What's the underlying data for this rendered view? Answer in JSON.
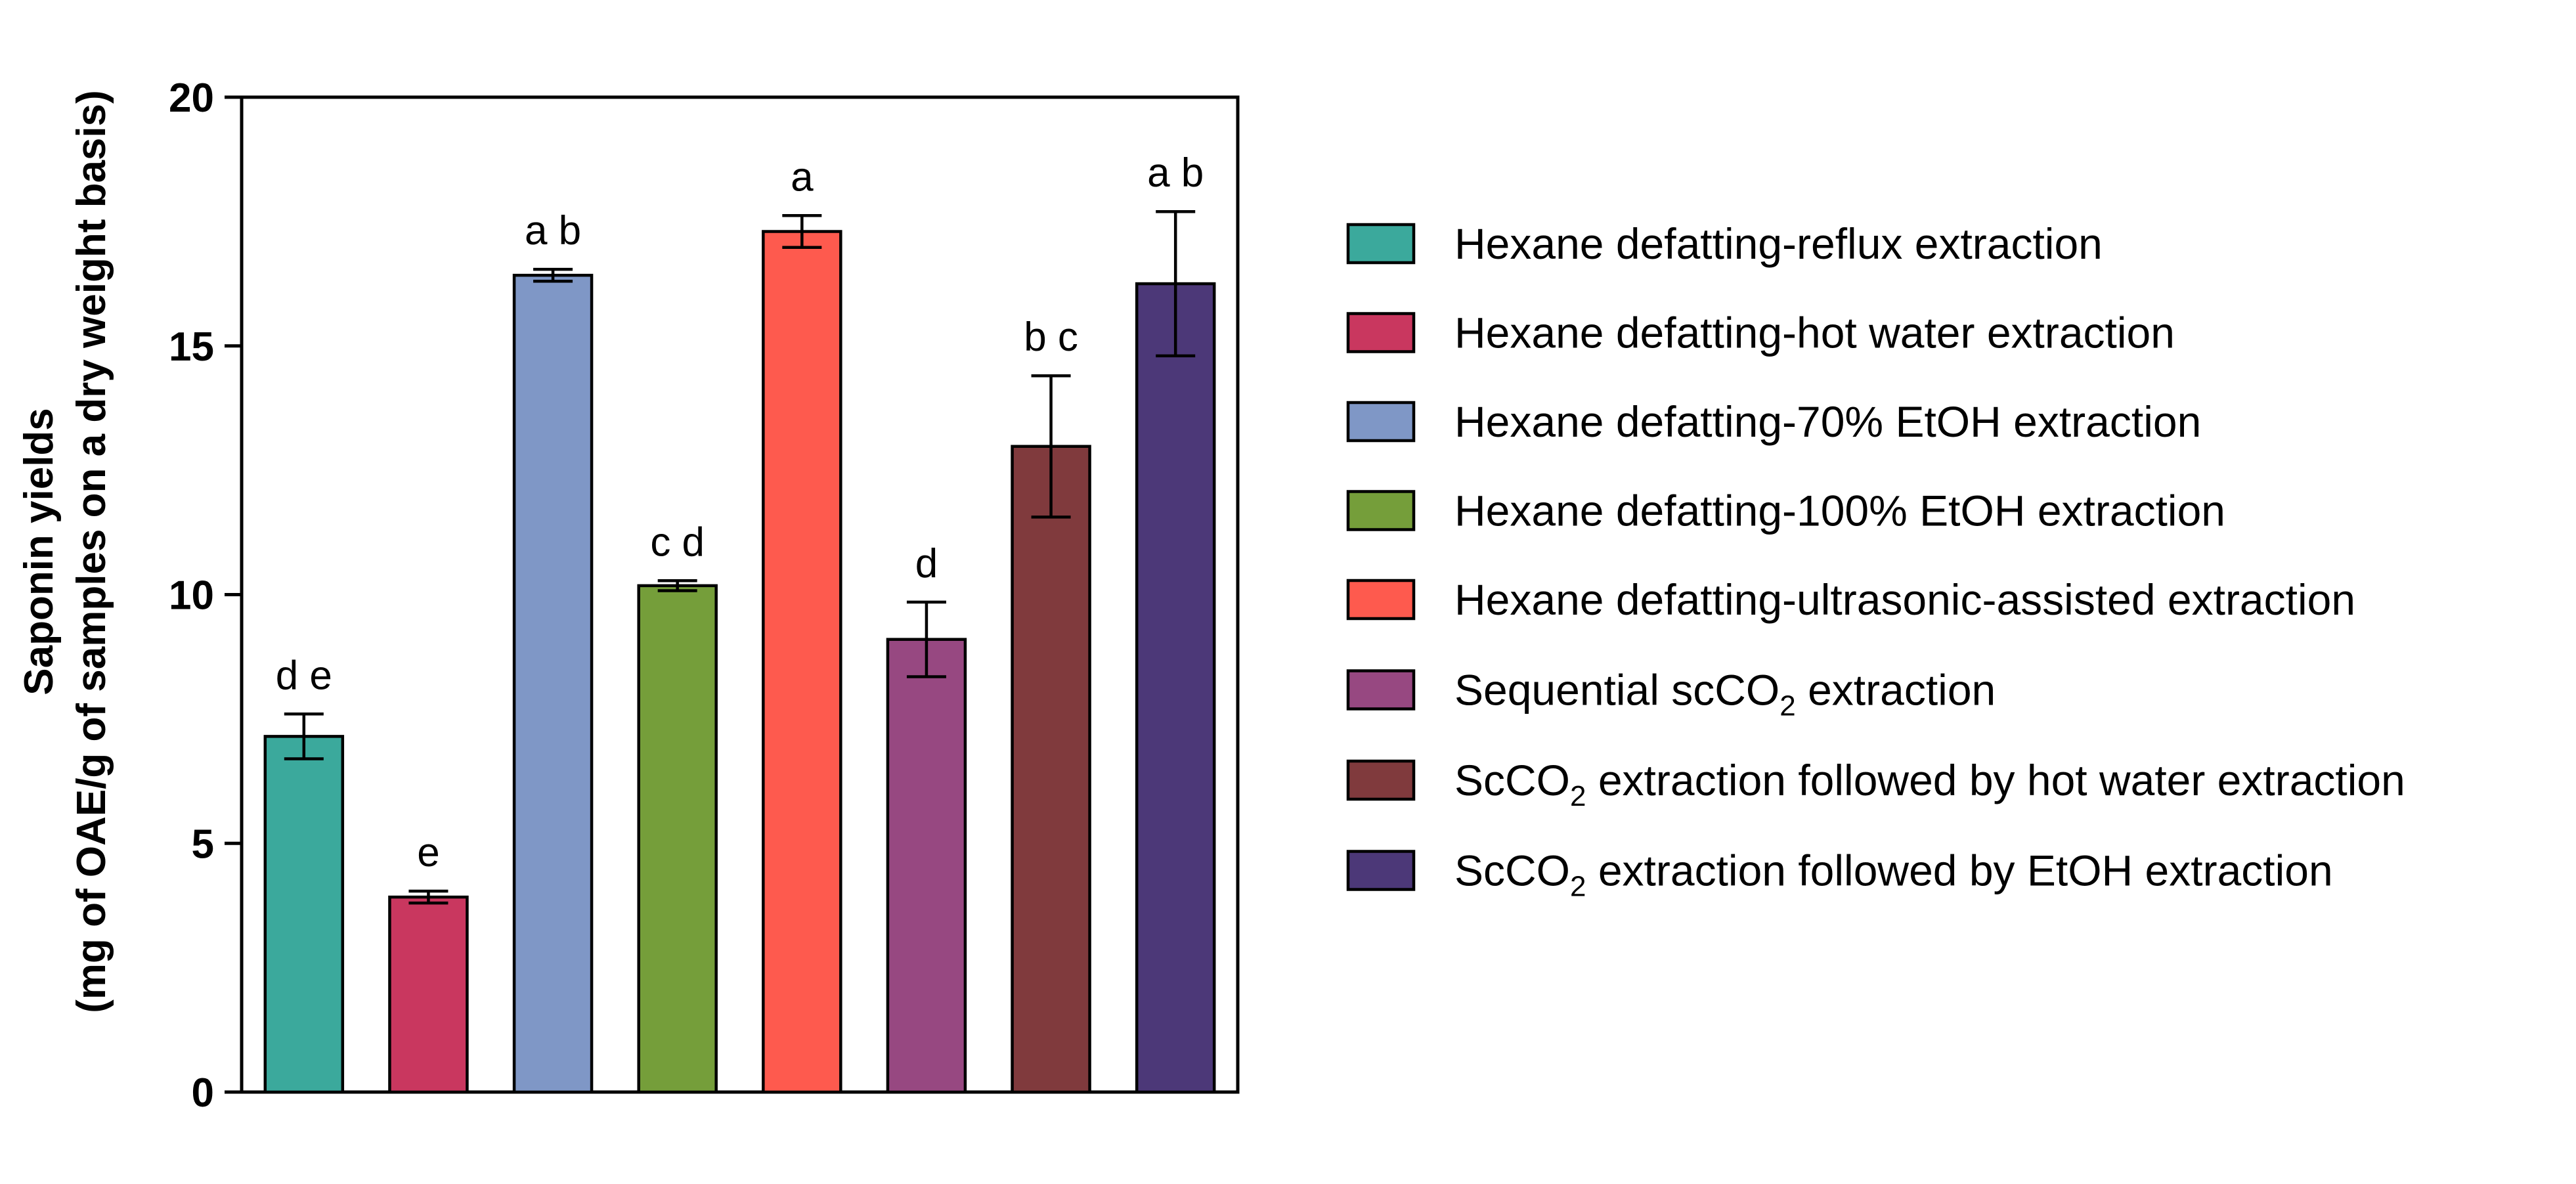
{
  "chart_data": {
    "type": "bar",
    "ylabel_line1": "Saponin yields",
    "ylabel_line2": "(mg of OAE/g of samples on a dry weight basis)",
    "xlabel": "",
    "ylim": [
      0,
      20
    ],
    "yticks": [
      0,
      5,
      10,
      15,
      20
    ],
    "grid": false,
    "legend_position": "right",
    "categories": [
      "Hexane defatting-reflux extraction",
      "Hexane defatting-hot water extraction",
      "Hexane defatting-70% EtOH extraction",
      "Hexane defatting-100% EtOH extraction",
      "Hexane defatting-ultrasonic-assisted extraction",
      "Sequential scCO2 extraction",
      "ScCO2 extraction followed by hot water extraction",
      "ScCO2 extraction followed by EtOH extraction"
    ],
    "values": [
      7.15,
      3.92,
      16.42,
      10.18,
      17.3,
      9.1,
      12.98,
      16.25
    ],
    "errors": [
      0.45,
      0.12,
      0.12,
      0.1,
      0.32,
      0.75,
      1.42,
      1.45
    ],
    "significance_labels": [
      "d e",
      "e",
      "a b",
      "c d",
      "a",
      "d",
      "b c",
      "a b"
    ],
    "colors": [
      "#3ba99c",
      "#c9375f",
      "#7f97c6",
      "#759e3a",
      "#fe5a4e",
      "#974881",
      "#803a3d",
      "#4c3878"
    ],
    "legend": [
      {
        "text": "Hexane defatting-reflux extraction"
      },
      {
        "text": "Hexane defatting-hot water extraction"
      },
      {
        "text": "Hexane defatting-70% EtOH extraction"
      },
      {
        "text": "Hexane defatting-100% EtOH extraction"
      },
      {
        "text": "Hexane defatting-ultrasonic-assisted extraction"
      },
      {
        "text": "Sequential scCO",
        "sub": "2",
        "after": " extraction"
      },
      {
        "text": "ScCO",
        "sub": "2",
        "after": " extraction followed by hot water extraction"
      },
      {
        "text": "ScCO",
        "sub": "2",
        "after": " extraction followed by EtOH extraction"
      }
    ]
  }
}
